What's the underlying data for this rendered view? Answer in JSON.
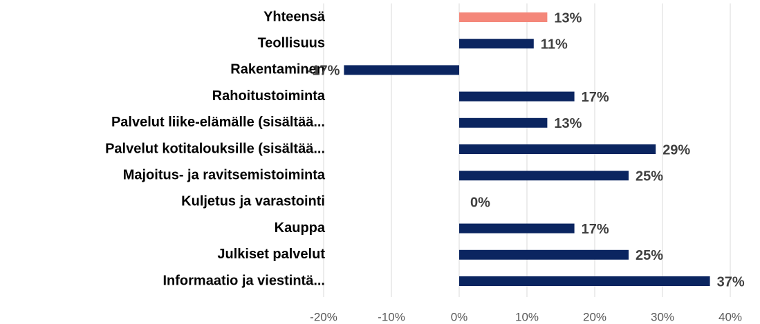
{
  "chart_data": {
    "type": "barh",
    "categories": [
      "Yhteensä",
      "Teollisuus",
      "Rakentaminen",
      "Rahoitustoiminta",
      "Palvelut liike-elämälle (sisältää...",
      "Palvelut kotitalouksille (sisältää...",
      "Majoitus- ja ravitsemistoiminta",
      "Kuljetus ja varastointi",
      "Kauppa",
      "Julkiset palvelut",
      "Informaatio ja viestintä..."
    ],
    "values": [
      13,
      11,
      -17,
      17,
      13,
      29,
      25,
      0,
      17,
      25,
      37
    ],
    "value_labels": [
      "13%",
      "11%",
      "-17%",
      "17%",
      "13%",
      "29%",
      "25%",
      "0%",
      "17%",
      "25%",
      "37%"
    ],
    "colors": [
      "#f4877a",
      "#0b2560",
      "#0b2560",
      "#0b2560",
      "#0b2560",
      "#0b2560",
      "#0b2560",
      "#0b2560",
      "#0b2560",
      "#0b2560",
      "#0b2560"
    ],
    "xlim": [
      -20,
      40
    ],
    "xticks": [
      {
        "value": -20,
        "label": "-20%"
      },
      {
        "value": -10,
        "label": "-10%"
      },
      {
        "value": 0,
        "label": "0%"
      },
      {
        "value": 10,
        "label": "10%"
      },
      {
        "value": 20,
        "label": "20%"
      },
      {
        "value": 30,
        "label": "30%"
      },
      {
        "value": 40,
        "label": "40%"
      }
    ],
    "grid": true
  }
}
